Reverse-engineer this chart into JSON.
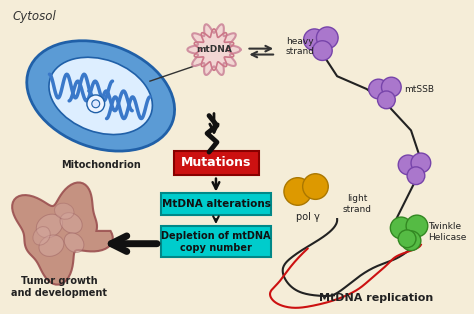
{
  "background_color": "#f5edd8",
  "cytosol_label": "Cytosol",
  "mitochondrion_label": "Mitochondrion",
  "mtdna_label": "mtDNA",
  "mutations_label": "Mutations",
  "mtdna_alt_label": "MtDNA alterations",
  "depletion_label": "Depletion of mtDNA\ncopy number",
  "tumor_label": "Tumor growth\nand development",
  "heavy_strand_label": "heavy\nstrand",
  "light_strand_label": "light\nstrand",
  "mtssb_label": "mtSSB",
  "poly_label": "pol γ",
  "twinkle_label": "Twinkle\nHelicase",
  "replication_label": "MtDNA replication",
  "mito_outer_color": "#5b9bd5",
  "mito_inner_color": "#aacce8",
  "mito_light_color": "#ddeeff",
  "mito_cristae_color": "#3a78c9",
  "mito_outline_color": "#2060a8",
  "mtdna_ring_color": "#d090a0",
  "mutations_box_color": "#cc1111",
  "mutations_text_color": "#ffffff",
  "alt_box_color": "#00cccc",
  "depletion_box_color": "#00cccc",
  "tumor_main_color": "#c08878",
  "tumor_cell_color": "#c09090",
  "tumor_spot_color": "#d4a8a0",
  "purple_color": "#aa77cc",
  "purple_dark": "#7744aa",
  "orange_color": "#dd9900",
  "orange_dark": "#aa7700",
  "green_color": "#55bb44",
  "green_dark": "#338822",
  "black_strand": "#222222",
  "red_strand": "#cc1111",
  "arrow_color": "#111111",
  "text_color": "#222222",
  "box_border": "#008888"
}
